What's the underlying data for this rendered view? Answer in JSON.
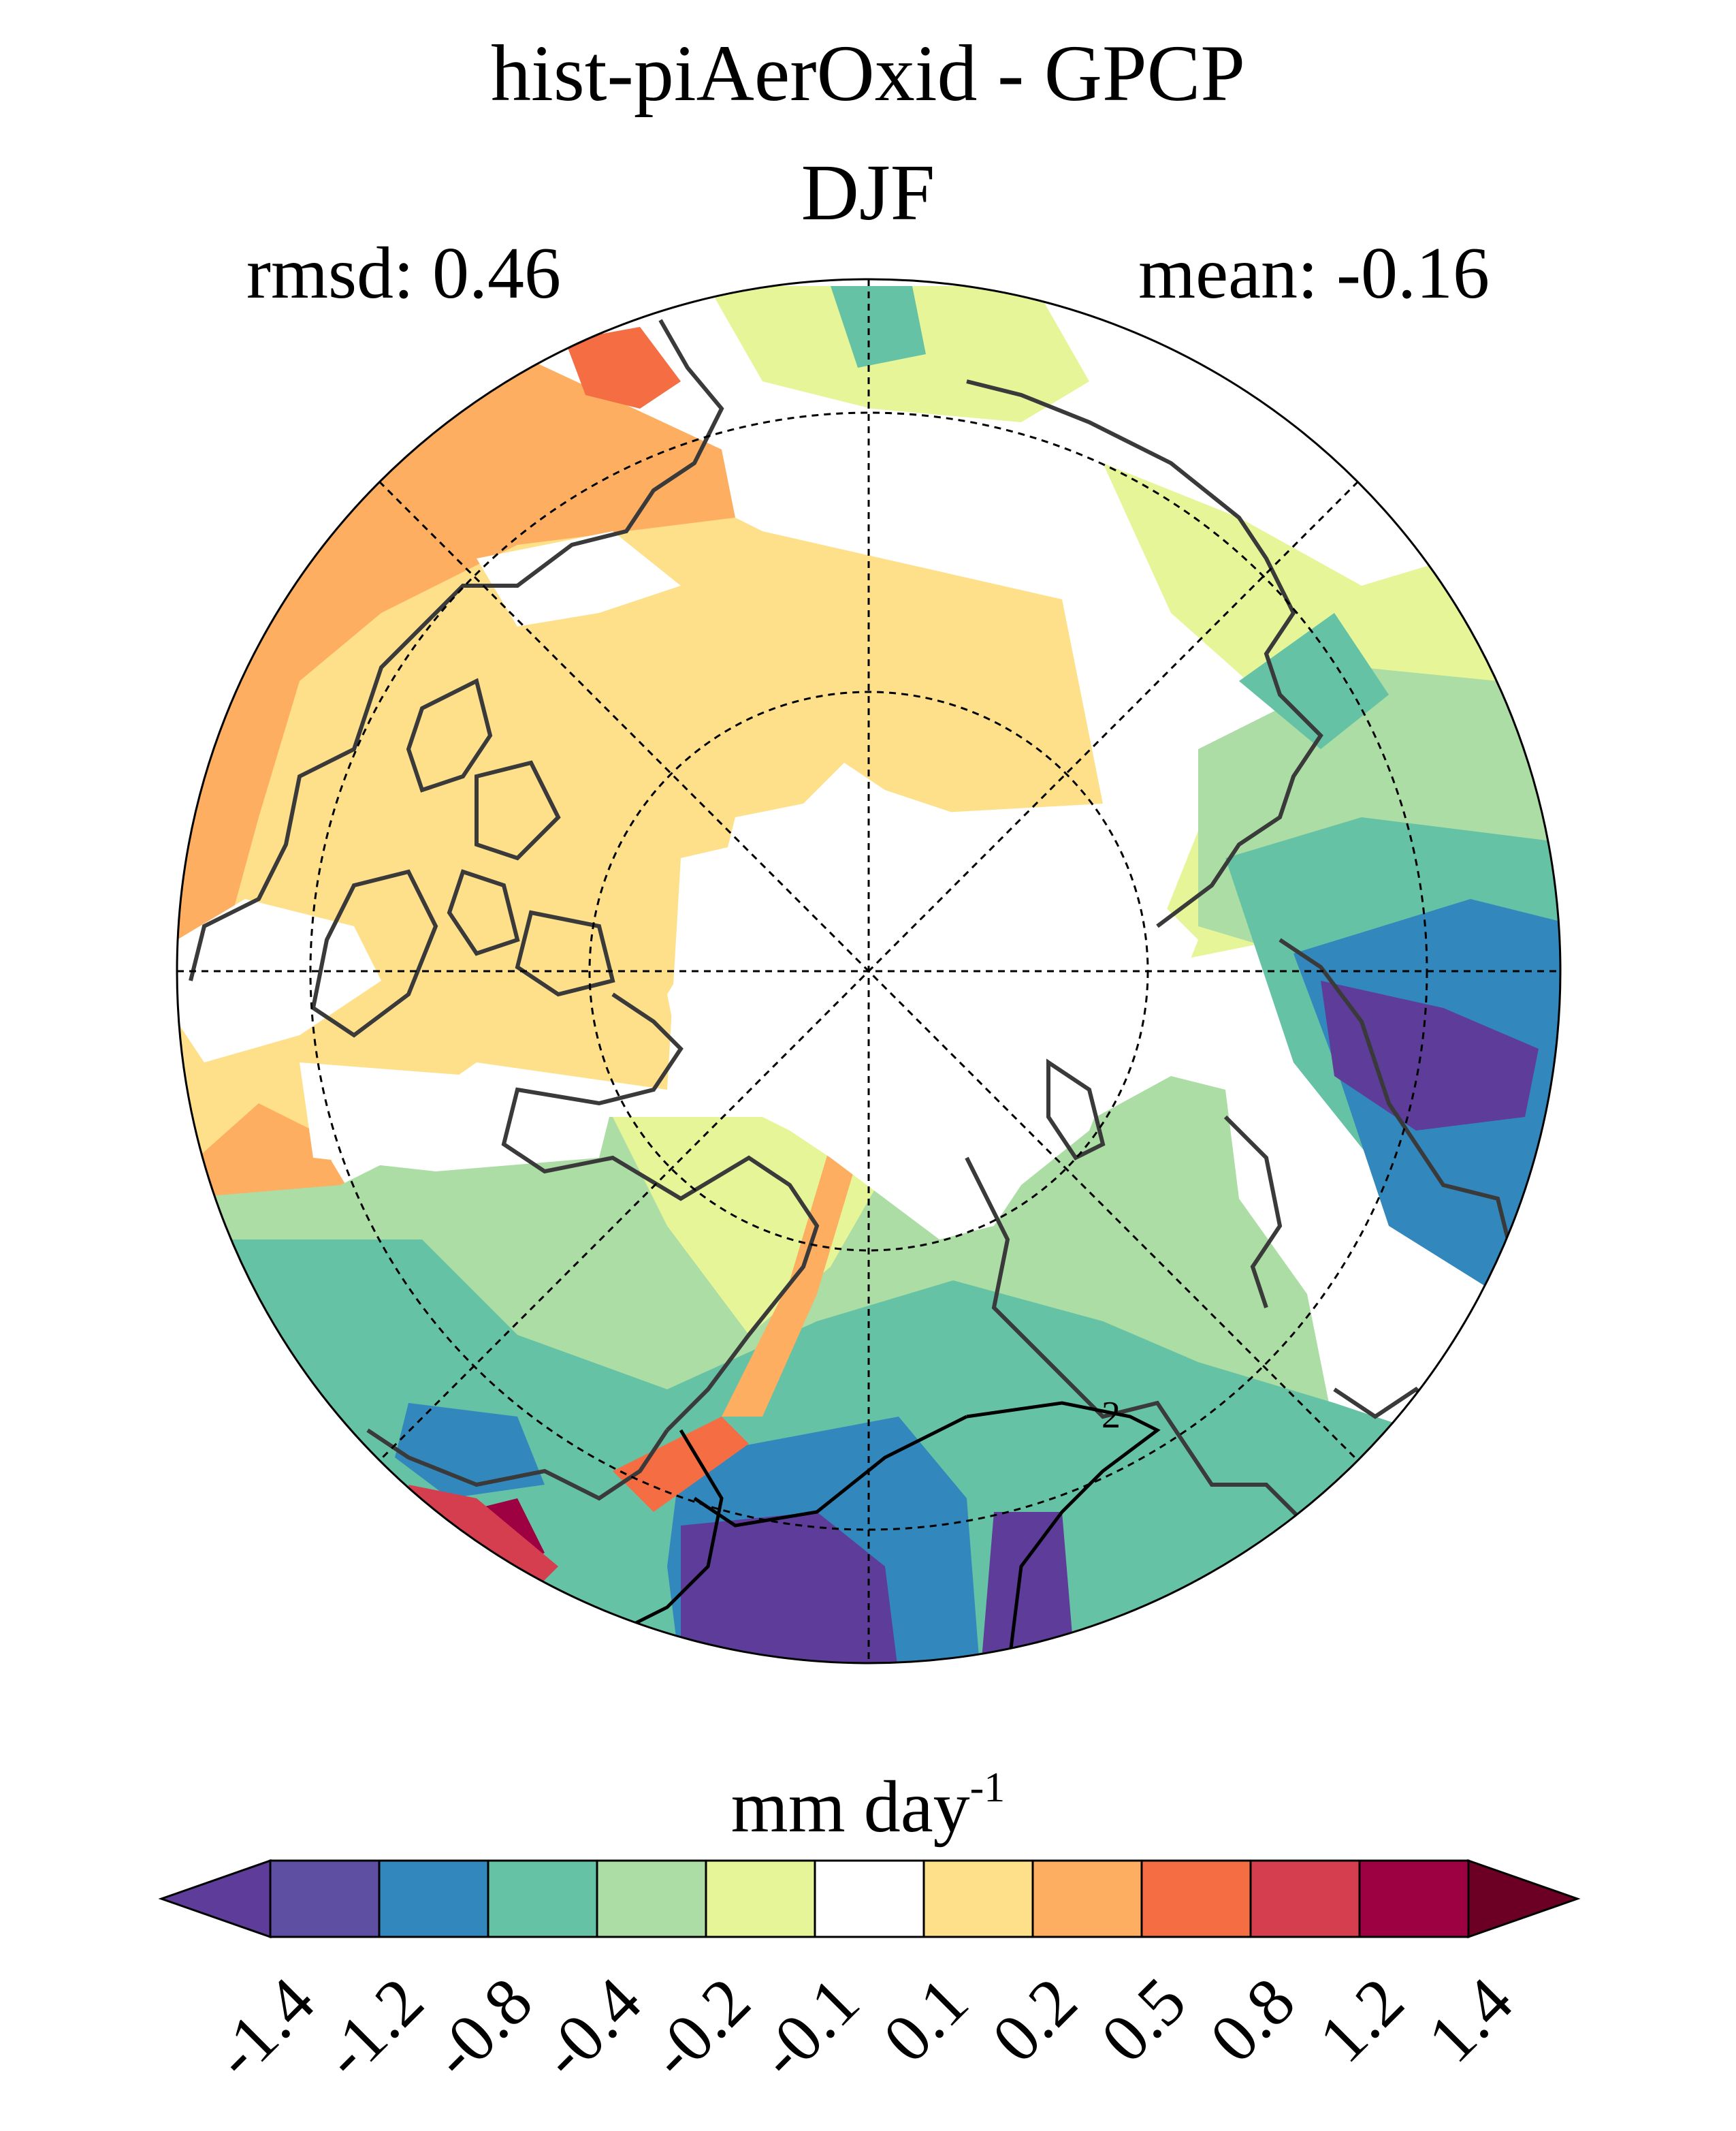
{
  "title": "hist-piAerOxid - GPCP",
  "season": "DJF",
  "stats": {
    "rmsd_label": "rmsd: 0.46",
    "mean_label": "mean: -0.16"
  },
  "colorbar": {
    "units_base": "mm day",
    "units_exponent": "-1",
    "ticks": [
      "-1.4",
      "-1.2",
      "-0.8",
      "-0.4",
      "-0.2",
      "-0.1",
      "0.1",
      "0.2",
      "0.5",
      "0.8",
      "1.2",
      "1.4"
    ],
    "colors": [
      "#5e3c99",
      "#5e4fa2",
      "#3288bd",
      "#66c2a5",
      "#abdda4",
      "#e6f598",
      "#ffffff",
      "#fee08b",
      "#fdae61",
      "#f46d43",
      "#d53e4f",
      "#9e0142",
      "#6b0024"
    ]
  },
  "map": {
    "projection": "north polar stereographic",
    "contour_label": "2",
    "palette": {
      "deep_purple": "#5e3c99",
      "blue": "#3288bd",
      "teal": "#66c2a5",
      "light_green": "#abdda4",
      "yellow_green": "#e6f598",
      "light_orange": "#fee08b",
      "orange": "#fdae61",
      "red_orange": "#f46d43",
      "dark_red": "#9e0142",
      "coastline": "#3a3a3a"
    }
  }
}
